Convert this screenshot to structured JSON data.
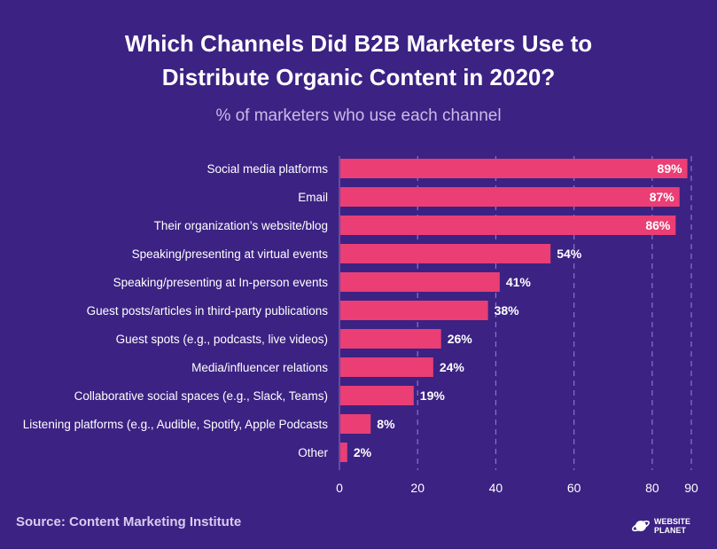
{
  "chart_data": {
    "type": "bar",
    "orientation": "horizontal",
    "title_lines": [
      "Which Channels Did B2B Marketers Use to",
      "Distribute Organic Content in 2020?"
    ],
    "subtitle": "% of marketers who use each channel",
    "categories": [
      "Social media platforms",
      "Email",
      "Their organization’s website/blog",
      "Speaking/presenting at virtual events",
      "Speaking/presenting at In-person events",
      "Guest posts/articles in third-party publications",
      "Guest spots (e.g., podcasts, live videos)",
      "Media/influencer relations",
      "Collaborative social spaces (e.g., Slack, Teams)",
      "Listening platforms (e.g., Audible, Spotify, Apple Podcasts",
      "Other"
    ],
    "values": [
      89,
      87,
      86,
      54,
      41,
      38,
      26,
      24,
      19,
      8,
      2
    ],
    "value_labels": [
      "89%",
      "87%",
      "86%",
      "54%",
      "41%",
      "38%",
      "26%",
      "24%",
      "19%",
      "8%",
      "2%"
    ],
    "xlim": [
      0,
      90
    ],
    "xticks": [
      0,
      20,
      40,
      60,
      80,
      90
    ],
    "xtick_labels": [
      "0",
      "20",
      "40",
      "60",
      "80",
      "90"
    ],
    "grid": true,
    "bar_color": "#ea3e75",
    "background": "#3c2283",
    "gridline_color": "#8a76c4"
  },
  "footer": {
    "source": "Source: Content Marketing Institute",
    "logo_line1": "WEBSITE",
    "logo_line2": "PLANET"
  }
}
